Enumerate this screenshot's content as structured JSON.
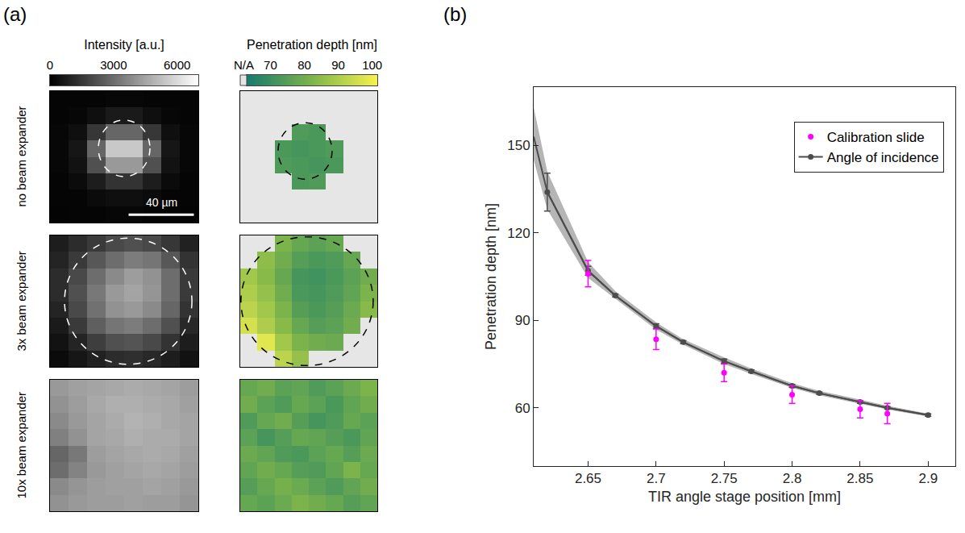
{
  "chart_data": [
    {
      "type": "heatmap",
      "panel": "(a)",
      "rows": [
        "no beam expander",
        "3x beam expander",
        "10x beam expander"
      ],
      "scale_bar": "40 µm",
      "columns": [
        {
          "title": "Intensity [a.u.]",
          "colorbar_range": [
            0,
            7000
          ],
          "colorbar_ticks": [
            0,
            3000,
            6000
          ],
          "colorscale": [
            "#000000",
            "#ffffff"
          ],
          "cells": [
            [
              [
                150,
                150,
                150,
                200,
                200,
                150,
                150,
                150
              ],
              [
                150,
                200,
                400,
                700,
                700,
                400,
                200,
                150
              ],
              [
                200,
                400,
                1500,
                2800,
                2800,
                1500,
                400,
                200
              ],
              [
                200,
                600,
                2800,
                5500,
                5500,
                2800,
                600,
                200
              ],
              [
                200,
                500,
                2200,
                4200,
                4200,
                2200,
                500,
                200
              ],
              [
                150,
                300,
                800,
                1400,
                1400,
                800,
                300,
                150
              ],
              [
                150,
                150,
                300,
                400,
                400,
                300,
                150,
                150
              ],
              [
                100,
                150,
                150,
                200,
                200,
                150,
                150,
                100
              ]
            ],
            [
              [
                800,
                1200,
                1600,
                2000,
                2200,
                2000,
                1500,
                900
              ],
              [
                1000,
                1600,
                2400,
                3000,
                3400,
                3200,
                2400,
                1400
              ],
              [
                1200,
                2000,
                3000,
                3800,
                4300,
                4000,
                3000,
                1600
              ],
              [
                1200,
                2200,
                3300,
                4200,
                4500,
                4100,
                3000,
                1600
              ],
              [
                1000,
                2000,
                3100,
                4000,
                4200,
                3800,
                2800,
                1400
              ],
              [
                700,
                1600,
                2600,
                3200,
                3400,
                3000,
                2200,
                1100
              ],
              [
                500,
                1000,
                1700,
                2200,
                2300,
                2000,
                1400,
                800
              ],
              [
                300,
                600,
                900,
                1200,
                1300,
                1100,
                800,
                500
              ]
            ],
            [
              [
                4200,
                4400,
                4500,
                4600,
                4700,
                4600,
                4500,
                4300
              ],
              [
                4000,
                4300,
                4600,
                4800,
                4800,
                4700,
                4600,
                4400
              ],
              [
                3800,
                4200,
                4500,
                4700,
                4900,
                4800,
                4600,
                4500
              ],
              [
                3500,
                4000,
                4500,
                4600,
                4800,
                4700,
                4700,
                4500
              ],
              [
                2800,
                3300,
                4300,
                4500,
                4600,
                4700,
                4600,
                4400
              ],
              [
                3000,
                3600,
                4200,
                4400,
                4500,
                4600,
                4500,
                4300
              ],
              [
                3800,
                4100,
                4300,
                4400,
                4400,
                4500,
                4400,
                4200
              ],
              [
                4000,
                4200,
                4300,
                4300,
                4400,
                4300,
                4300,
                4100
              ]
            ]
          ]
        },
        {
          "title": "Penetration depth [nm]",
          "colorbar_range": [
            63,
            101.5
          ],
          "colorbar_ticks": [
            70,
            80,
            90,
            100
          ],
          "missing_label": "N/A",
          "missing_color": "#e6e6e6",
          "colorscale": [
            "#157a6e",
            "#7db44a",
            "#f7f24f"
          ],
          "cells": [
            [
              [
                null,
                null,
                null,
                null,
                null,
                null,
                null,
                null
              ],
              [
                null,
                null,
                null,
                null,
                null,
                null,
                null,
                null
              ],
              [
                null,
                null,
                null,
                74,
                73,
                null,
                null,
                null
              ],
              [
                null,
                null,
                73,
                72,
                73,
                74,
                null,
                null
              ],
              [
                null,
                null,
                74,
                73,
                72,
                73,
                null,
                null
              ],
              [
                null,
                null,
                null,
                73,
                74,
                null,
                null,
                null
              ],
              [
                null,
                null,
                null,
                null,
                null,
                null,
                null,
                null
              ],
              [
                null,
                null,
                null,
                null,
                null,
                null,
                null,
                null
              ]
            ],
            [
              [
                null,
                null,
                82,
                78,
                76,
                78,
                null,
                null
              ],
              [
                null,
                85,
                80,
                75,
                73,
                74,
                78,
                null
              ],
              [
                88,
                84,
                78,
                72,
                71,
                73,
                76,
                80
              ],
              [
                90,
                86,
                80,
                73,
                72,
                74,
                77,
                82
              ],
              [
                92,
                88,
                82,
                75,
                73,
                75,
                79,
                84
              ],
              [
                96,
                90,
                84,
                78,
                75,
                76,
                80,
                null
              ],
              [
                null,
                98,
                88,
                82,
                80,
                79,
                null,
                null
              ],
              [
                null,
                null,
                92,
                86,
                null,
                null,
                null,
                null
              ]
            ],
            [
              [
                78,
                80,
                76,
                77,
                74,
                76,
                79,
                82
              ],
              [
                80,
                76,
                74,
                78,
                76,
                73,
                77,
                80
              ],
              [
                74,
                78,
                80,
                75,
                72,
                74,
                78,
                76
              ],
              [
                76,
                72,
                75,
                78,
                77,
                75,
                73,
                77
              ],
              [
                79,
                77,
                74,
                73,
                76,
                78,
                75,
                79
              ],
              [
                77,
                80,
                78,
                75,
                74,
                77,
                82,
                78
              ],
              [
                75,
                78,
                81,
                79,
                76,
                74,
                77,
                80
              ],
              [
                78,
                76,
                79,
                82,
                80,
                78,
                75,
                77
              ]
            ]
          ]
        }
      ]
    },
    {
      "type": "line",
      "panel": "(b)",
      "xlabel": "TIR angle stage position [mm]",
      "ylabel": "Penetration depth [nm]",
      "xlim": [
        2.61,
        2.92
      ],
      "ylim": [
        40,
        170
      ],
      "xticks": [
        2.65,
        2.7,
        2.75,
        2.8,
        2.85,
        2.9
      ],
      "yticks": [
        60,
        90,
        120,
        150
      ],
      "grid": false,
      "legend": "upper right",
      "band": {
        "color": "#b5b5b5",
        "x": [
          2.61,
          2.62,
          2.65,
          2.67,
          2.7,
          2.72,
          2.75,
          2.77,
          2.8,
          2.82,
          2.85,
          2.87,
          2.9
        ],
        "values": [
          153,
          134,
          107,
          98.5,
          88,
          82.5,
          76,
          72.5,
          67.5,
          65,
          62,
          60,
          57.5
        ],
        "lower": [
          145,
          128,
          104.5,
          97.5,
          86.8,
          81.6,
          75,
          71.6,
          66.8,
          64.3,
          61.3,
          59.4,
          57
        ],
        "upper": [
          163,
          141,
          110,
          100,
          89.3,
          83.5,
          77.3,
          73.5,
          68.4,
          65.8,
          62.8,
          60.7,
          58
        ]
      },
      "series": [
        {
          "name": "Angle of incidence",
          "color": "#4d4d4d",
          "marker": "circle",
          "line_style": "solid",
          "x": [
            2.62,
            2.65,
            2.67,
            2.7,
            2.72,
            2.75,
            2.77,
            2.8,
            2.82,
            2.85,
            2.87,
            2.9
          ],
          "values": [
            134,
            107,
            98.5,
            88,
            82.5,
            76,
            72.5,
            67.5,
            65,
            62,
            60,
            57.5
          ],
          "errors": [
            6.5,
            1.5,
            0.5,
            0.8,
            0.5,
            0.7,
            0.5,
            0.5,
            0.4,
            0.5,
            0.4,
            0.4
          ]
        },
        {
          "name": "Calibration slide",
          "color": "#ff00ff",
          "marker": "circle",
          "line_style": "none",
          "x": [
            2.65,
            2.7,
            2.75,
            2.8,
            2.85,
            2.87
          ],
          "values": [
            106,
            83.5,
            72,
            64.5,
            59.5,
            58
          ],
          "errors": [
            4.5,
            3.5,
            3,
            3,
            3,
            3.5
          ]
        }
      ]
    }
  ]
}
